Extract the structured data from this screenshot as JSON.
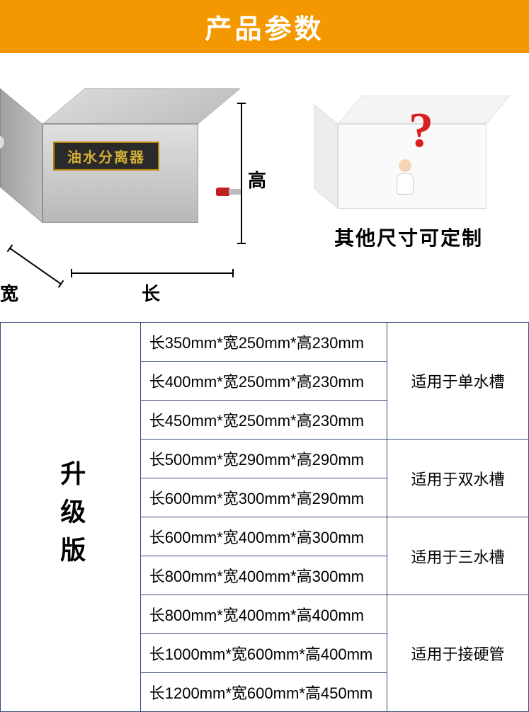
{
  "header": {
    "title": "产品参数"
  },
  "colors": {
    "header_bg": "#f39800",
    "header_text": "#ffffff",
    "border": "#3a4a7a",
    "accent_red": "#d92020",
    "box_label_bg": "#2a2a2a",
    "box_label_text": "#d4af37"
  },
  "diagram": {
    "product_label": "油水分离器",
    "dim_height": "高",
    "dim_width": "宽",
    "dim_length": "长"
  },
  "custom": {
    "text": "其他尺寸可定制",
    "symbol": "?"
  },
  "table": {
    "version_label": "升级版",
    "groups": [
      {
        "usage": "适用于单水槽",
        "rows": [
          "长350mm*宽250mm*高230mm",
          "长400mm*宽250mm*高230mm",
          "长450mm*宽250mm*高230mm"
        ]
      },
      {
        "usage": "适用于双水槽",
        "rows": [
          "长500mm*宽290mm*高290mm",
          "长600mm*宽300mm*高290mm"
        ]
      },
      {
        "usage": "适用于三水槽",
        "rows": [
          "长600mm*宽400mm*高300mm",
          "长800mm*宽400mm*高300mm"
        ]
      },
      {
        "usage": "适用于接硬管",
        "rows": [
          "长800mm*宽400mm*高400mm",
          "长1000mm*宽600mm*高400mm",
          "长1200mm*宽600mm*高450mm"
        ]
      }
    ]
  }
}
